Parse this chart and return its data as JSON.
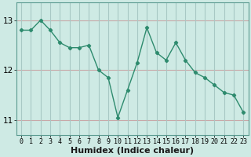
{
  "x": [
    0,
    1,
    2,
    3,
    4,
    5,
    6,
    7,
    8,
    9,
    10,
    11,
    12,
    13,
    14,
    15,
    16,
    17,
    18,
    19,
    20,
    21,
    22,
    23
  ],
  "y_actual": [
    12.8,
    12.8,
    13.0,
    12.8,
    12.55,
    12.45,
    12.45,
    12.5,
    12.0,
    11.85,
    11.05,
    11.6,
    12.15,
    12.85,
    12.35,
    12.2,
    12.55,
    12.2,
    11.95,
    11.85,
    11.7,
    11.55,
    11.5,
    11.15
  ],
  "line_color": "#2e8b6e",
  "marker_color": "#2e8b6e",
  "bg_color": "#ceeae4",
  "grid_color_major": "#c8a0a0",
  "grid_color_minor": "#b8d8d0",
  "xlabel": "Humidex (Indice chaleur)",
  "ylim": [
    10.7,
    13.35
  ],
  "yticks": [
    11,
    12,
    13
  ],
  "xticks": [
    0,
    1,
    2,
    3,
    4,
    5,
    6,
    7,
    8,
    9,
    10,
    11,
    12,
    13,
    14,
    15,
    16,
    17,
    18,
    19,
    20,
    21,
    22,
    23
  ]
}
